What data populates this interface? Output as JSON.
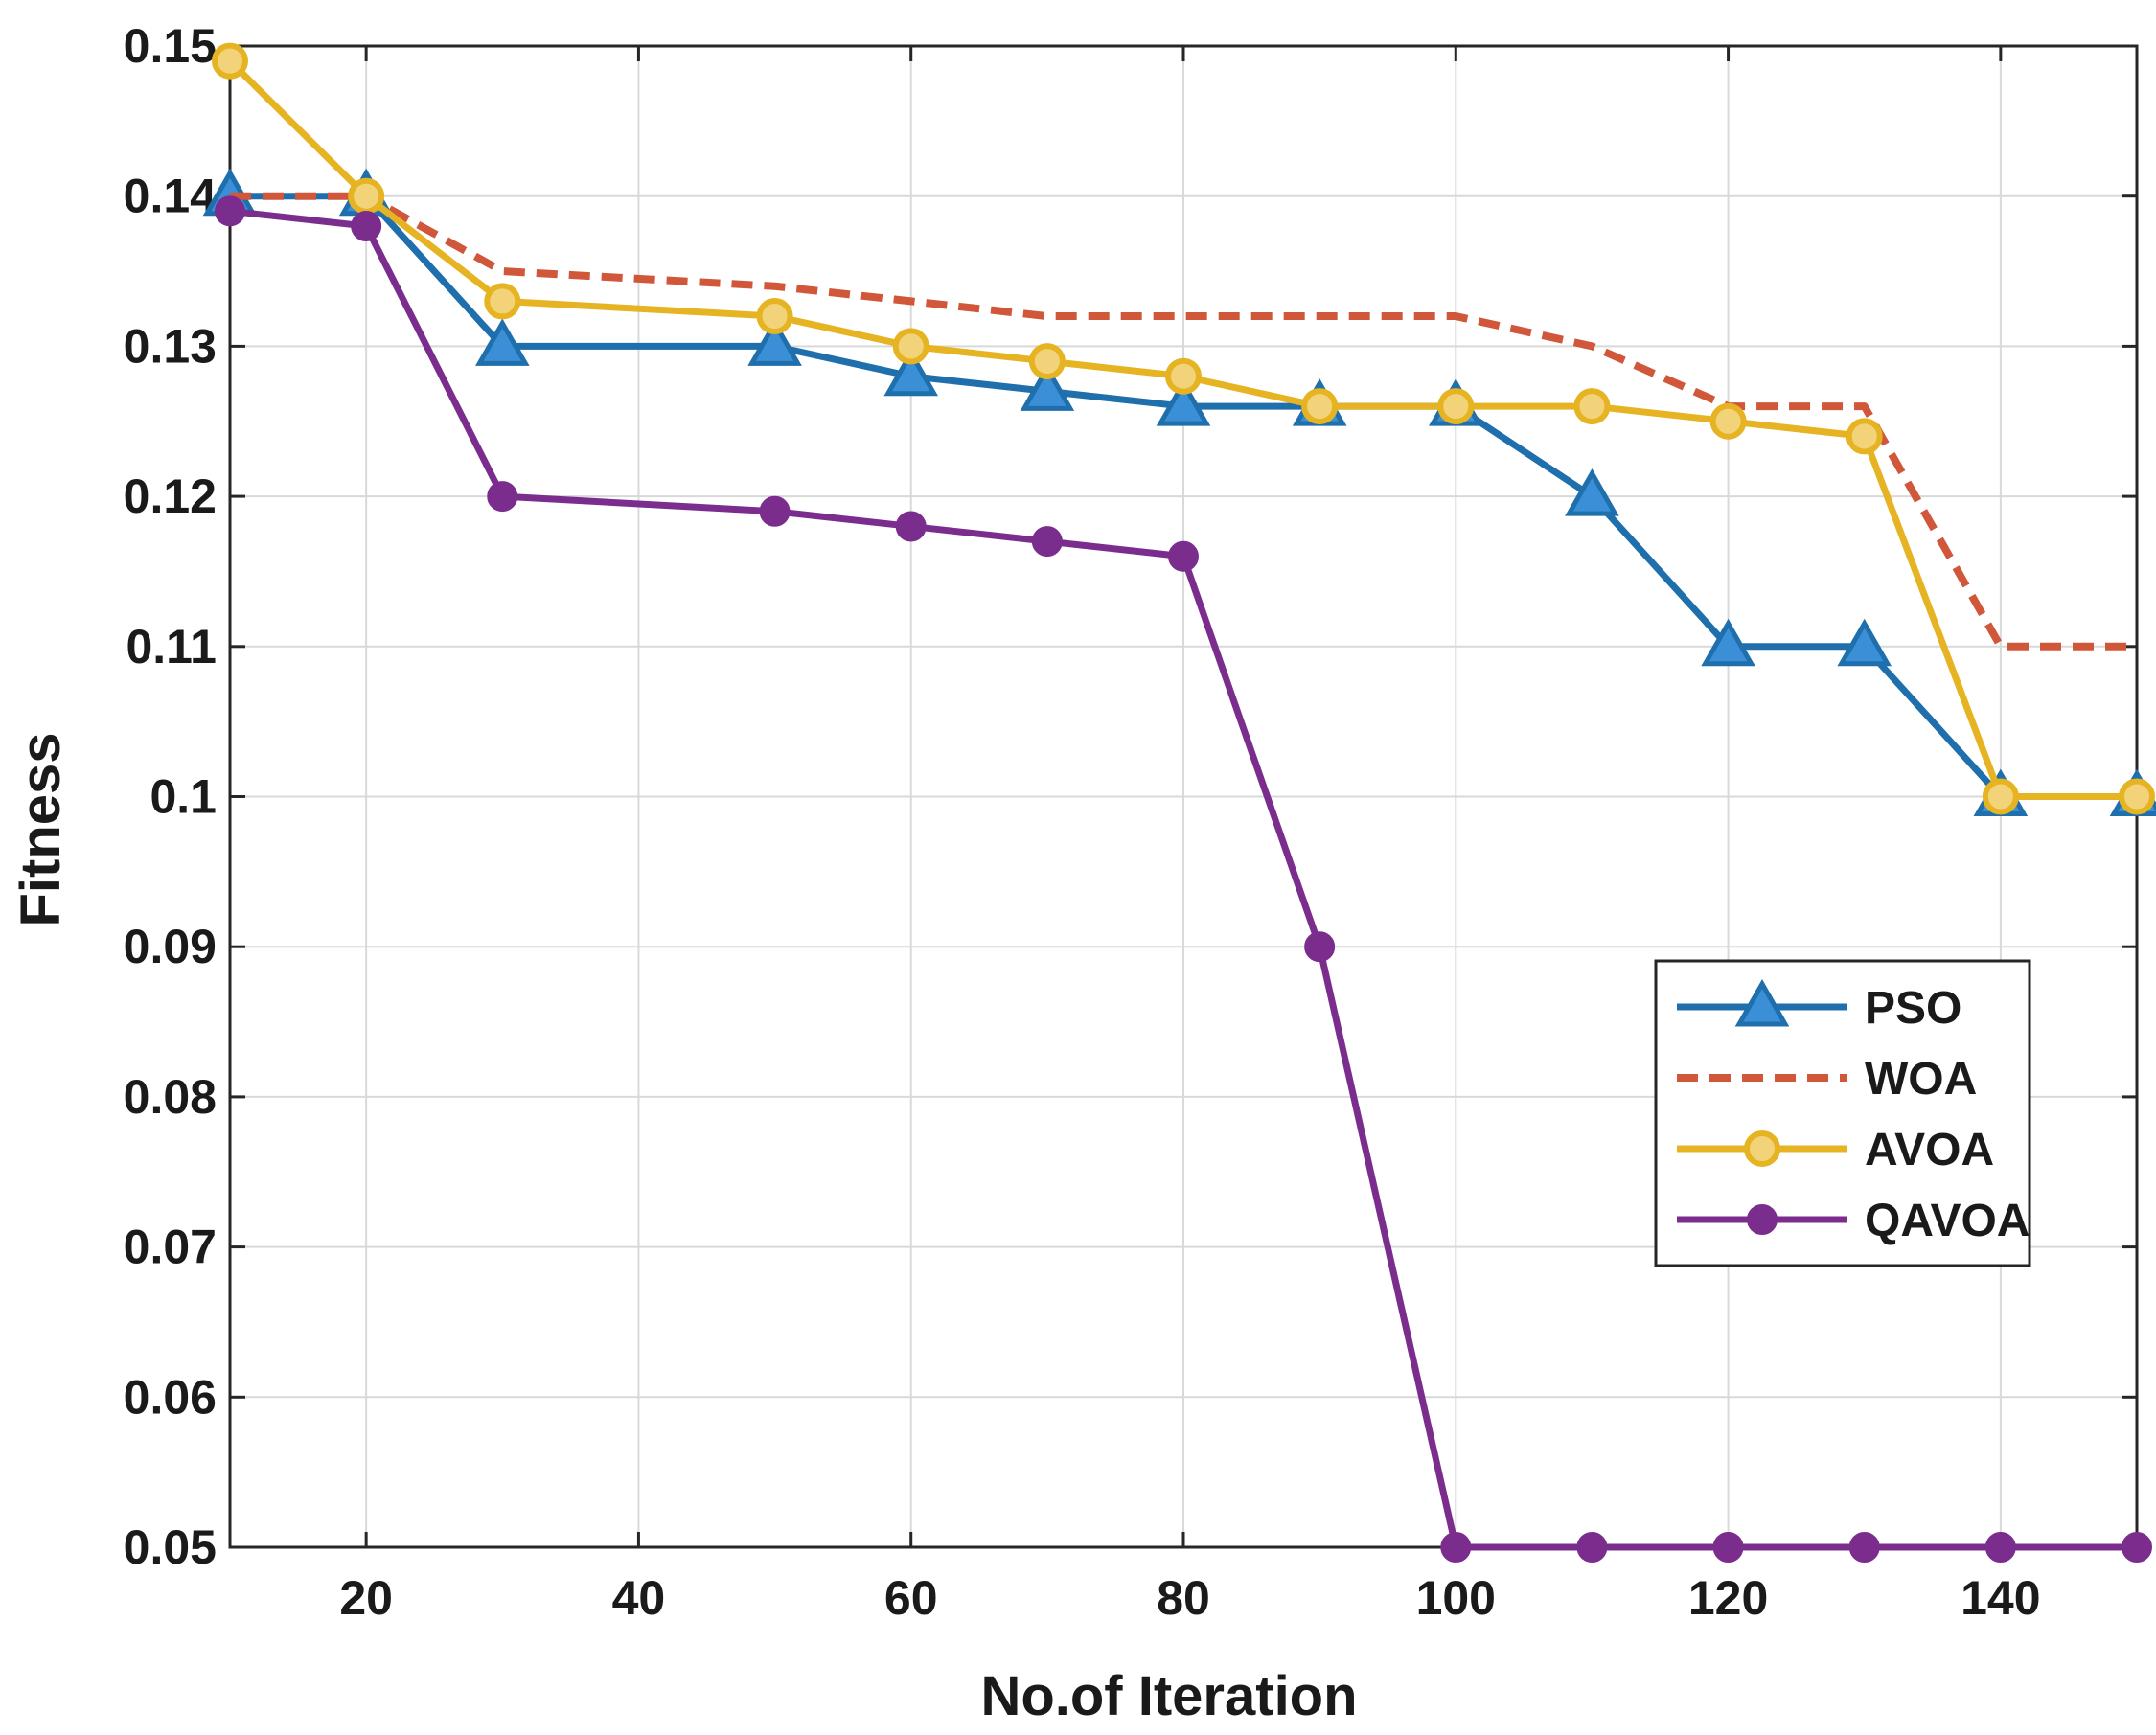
{
  "chart_data": {
    "type": "line",
    "title": "",
    "xlabel": "No.of Iteration",
    "ylabel": "Fitness",
    "xlim": [
      10,
      150
    ],
    "ylim": [
      0.05,
      0.15
    ],
    "xticks": [
      20,
      40,
      60,
      80,
      100,
      120,
      140
    ],
    "xtick_labels": [
      "20",
      "40",
      "60",
      "80",
      "100",
      "120",
      "140"
    ],
    "yticks": [
      0.05,
      0.06,
      0.07,
      0.08,
      0.09,
      0.1,
      0.11,
      0.12,
      0.13,
      0.14,
      0.15
    ],
    "ytick_labels": [
      "0.05",
      "0.06",
      "0.07",
      "0.08",
      "0.09",
      "0.1",
      "0.11",
      "0.12",
      "0.13",
      "0.14",
      "0.15"
    ],
    "grid": true,
    "legend_position": "right-middle",
    "series": [
      {
        "name": "PSO",
        "color": "#1f6fad",
        "marker": "triangle",
        "line_style": "solid",
        "x": [
          10,
          20,
          30,
          50,
          60,
          70,
          80,
          90,
          100,
          110,
          120,
          130,
          140,
          150
        ],
        "y": [
          0.14,
          0.14,
          0.13,
          0.13,
          0.128,
          0.127,
          0.126,
          0.126,
          0.126,
          0.12,
          0.11,
          0.11,
          0.1,
          0.1
        ]
      },
      {
        "name": "WOA",
        "color": "#d0573a",
        "marker": "none",
        "line_style": "dashed",
        "x": [
          10,
          20,
          30,
          50,
          60,
          70,
          80,
          90,
          100,
          110,
          120,
          130,
          140,
          150
        ],
        "y": [
          0.14,
          0.14,
          0.135,
          0.134,
          0.133,
          0.132,
          0.132,
          0.132,
          0.132,
          0.13,
          0.126,
          0.126,
          0.11,
          0.11
        ]
      },
      {
        "name": "AVOA",
        "color": "#e6b422",
        "marker": "circle-open",
        "line_style": "solid",
        "x": [
          10,
          20,
          30,
          50,
          60,
          70,
          80,
          90,
          100,
          110,
          120,
          130,
          140,
          150
        ],
        "y": [
          0.149,
          0.14,
          0.133,
          0.132,
          0.13,
          0.129,
          0.128,
          0.126,
          0.126,
          0.126,
          0.125,
          0.124,
          0.1,
          0.1
        ]
      },
      {
        "name": "QAVOA",
        "color": "#7b2d8e",
        "marker": "circle-filled",
        "line_style": "solid",
        "x": [
          10,
          20,
          30,
          50,
          60,
          70,
          80,
          90,
          100,
          110,
          120,
          130,
          140,
          150
        ],
        "y": [
          0.139,
          0.138,
          0.12,
          0.119,
          0.118,
          0.117,
          0.116,
          0.09,
          0.05,
          0.05,
          0.05,
          0.05,
          0.05,
          0.05
        ]
      }
    ]
  }
}
